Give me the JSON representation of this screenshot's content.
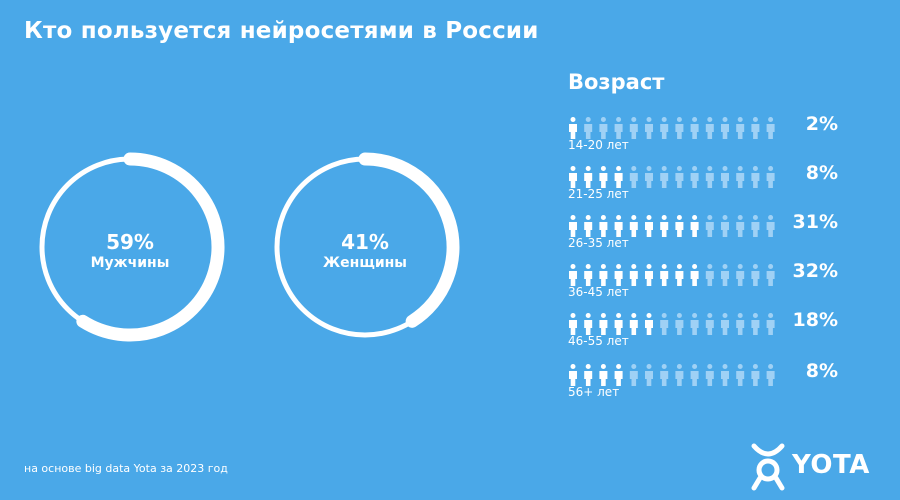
{
  "title": "Кто пользуется нейросетями в России",
  "chart_data": [
    {
      "type": "pie",
      "subtype": "donut",
      "slices": [
        {
          "name": "Мужчины",
          "value": 59,
          "label": "59%"
        },
        {
          "name": "Женщины",
          "value": 41,
          "label": "41%"
        }
      ]
    },
    {
      "type": "bar",
      "subtype": "pictogram",
      "title": "Возраст",
      "categories": [
        "14-20 лет",
        "21-25 лет",
        "26-35 лет",
        "36-45 лет",
        "46-55 лет",
        "56+ лет"
      ],
      "values": [
        2,
        8,
        31,
        32,
        18,
        8
      ],
      "labels": [
        "2%",
        "8%",
        "31%",
        "32%",
        "18%",
        "8%"
      ],
      "icons_total": 14,
      "icons_filled": [
        1,
        4,
        9,
        9,
        6,
        4
      ]
    }
  ],
  "colors": {
    "background": "#4aa8e8",
    "foreground": "#ffffff",
    "faded": "#9fd1f5"
  },
  "footer": {
    "note": "на основе big data Yota за 2023 год",
    "logo_text": "YOTA"
  }
}
